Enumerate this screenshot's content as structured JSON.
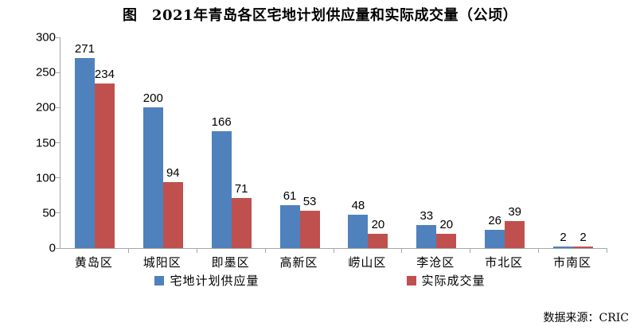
{
  "title": "图　2021年青岛各区宅地计划供应量和实际成交量（公顷）",
  "source_note": "数据来源：CRIC",
  "colors": {
    "series1": "#4F81BD",
    "series2": "#C0504D",
    "axis": "#A6A6A6",
    "text": "#000000",
    "background": "#FFFFFF"
  },
  "chart_data": {
    "type": "bar",
    "title": "图　2021年青岛各区宅地计划供应量和实际成交量（公顷）",
    "categories": [
      "黄岛区",
      "城阳区",
      "即墨区",
      "高新区",
      "崂山区",
      "李沧区",
      "市北区",
      "市南区"
    ],
    "series": [
      {
        "name": "宅地计划供应量",
        "color": "#4F81BD",
        "values": [
          271,
          200,
          166,
          61,
          48,
          33,
          26,
          2
        ]
      },
      {
        "name": "实际成交量",
        "color": "#C0504D",
        "values": [
          234,
          94,
          71,
          53,
          20,
          20,
          39,
          2
        ]
      }
    ],
    "xlabel": "",
    "ylabel": "",
    "ylim": [
      0,
      300
    ],
    "yticks": [
      0,
      50,
      100,
      150,
      200,
      250,
      300
    ],
    "grid": false,
    "legend_position": "bottom",
    "data_labels": true,
    "unit": "公顷"
  }
}
